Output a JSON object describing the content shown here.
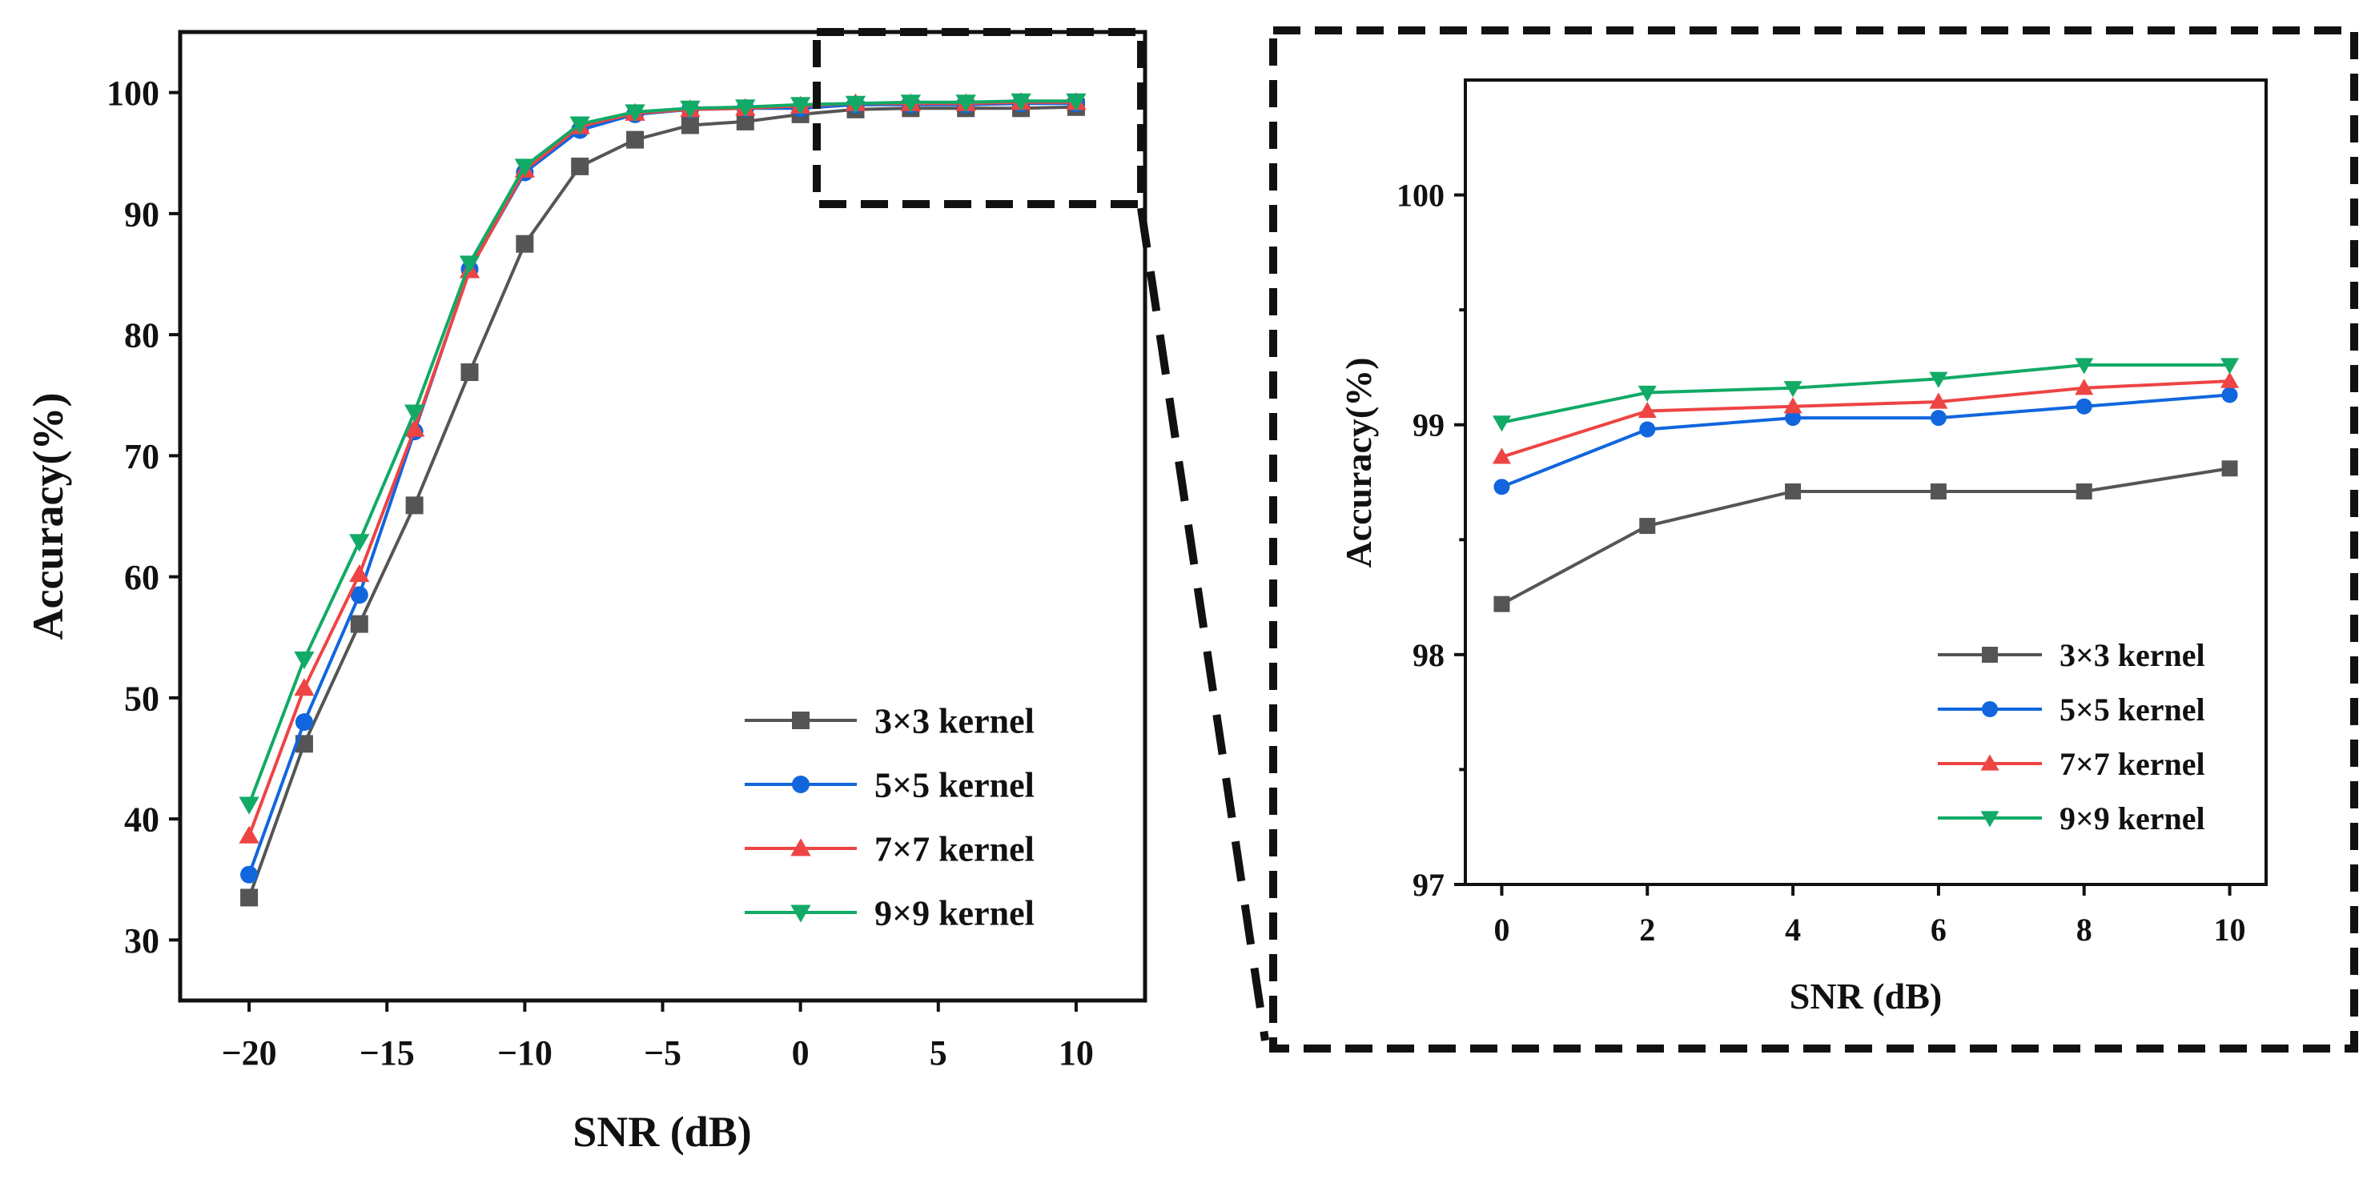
{
  "chart_data": [
    {
      "type": "line",
      "title": "",
      "xlabel": "SNR (dB)",
      "ylabel": "Accuracy(%)",
      "xlim": [
        -22.5,
        12.5
      ],
      "ylim": [
        25,
        105
      ],
      "xticks": [
        -20,
        -15,
        -10,
        -5,
        0,
        5,
        10
      ],
      "xtick_labels": [
        "−20",
        "−15",
        "−10",
        "−5",
        "0",
        "5",
        "10"
      ],
      "yticks": [
        30,
        40,
        50,
        60,
        70,
        80,
        90,
        100
      ],
      "grid": false,
      "legend_position": "bottom-right",
      "x": [
        -20,
        -18,
        -16,
        -14,
        -12,
        -10,
        -8,
        -6,
        -4,
        -2,
        0,
        2,
        4,
        6,
        8,
        10
      ],
      "series": [
        {
          "name": "3×3 kernel",
          "color": "#555555",
          "marker": "square",
          "values": [
            33.5,
            46.2,
            56.1,
            65.9,
            76.9,
            87.5,
            93.9,
            96.1,
            97.3,
            97.6,
            98.2,
            98.6,
            98.7,
            98.7,
            98.7,
            98.8
          ]
        },
        {
          "name": "5×5 kernel",
          "color": "#1166dd",
          "marker": "circle",
          "values": [
            35.4,
            48.0,
            58.5,
            72.0,
            85.4,
            93.4,
            96.9,
            98.2,
            98.6,
            98.7,
            98.7,
            99.0,
            99.0,
            99.0,
            99.1,
            99.1
          ]
        },
        {
          "name": "7×7 kernel",
          "color": "#ee4444",
          "marker": "triangle-up",
          "values": [
            38.6,
            50.8,
            60.2,
            72.2,
            85.3,
            93.6,
            97.2,
            98.3,
            98.6,
            98.7,
            98.9,
            99.1,
            99.1,
            99.1,
            99.2,
            99.2
          ]
        },
        {
          "name": "9×9 kernel",
          "color": "#11aa66",
          "marker": "triangle-down",
          "values": [
            41.2,
            53.2,
            62.9,
            73.6,
            85.9,
            93.9,
            97.4,
            98.4,
            98.7,
            98.8,
            99.0,
            99.1,
            99.2,
            99.2,
            99.3,
            99.3
          ]
        }
      ]
    },
    {
      "type": "line",
      "title": "",
      "xlabel": "SNR (dB)",
      "ylabel": "Accuracy(%)",
      "xlim": [
        -0.5,
        10.5
      ],
      "ylim": [
        97,
        100.5
      ],
      "xticks": [
        0,
        2,
        4,
        6,
        8,
        10
      ],
      "yticks": [
        97,
        98,
        99,
        100
      ],
      "yminor": [
        97.5,
        98.5,
        99.5
      ],
      "grid": false,
      "legend_position": "bottom-right",
      "x": [
        0,
        2,
        4,
        6,
        8,
        10
      ],
      "series": [
        {
          "name": "3×3 kernel",
          "color": "#555555",
          "marker": "square",
          "values": [
            98.22,
            98.56,
            98.71,
            98.71,
            98.71,
            98.81
          ]
        },
        {
          "name": "5×5 kernel",
          "color": "#1166dd",
          "marker": "circle",
          "values": [
            98.73,
            98.98,
            99.03,
            99.03,
            99.08,
            99.13
          ]
        },
        {
          "name": "7×7 kernel",
          "color": "#ee4444",
          "marker": "triangle-up",
          "values": [
            98.86,
            99.06,
            99.08,
            99.1,
            99.16,
            99.19
          ]
        },
        {
          "name": "9×9 kernel",
          "color": "#11aa66",
          "marker": "triangle-down",
          "values": [
            99.01,
            99.14,
            99.16,
            99.2,
            99.26,
            99.26
          ]
        }
      ]
    }
  ]
}
